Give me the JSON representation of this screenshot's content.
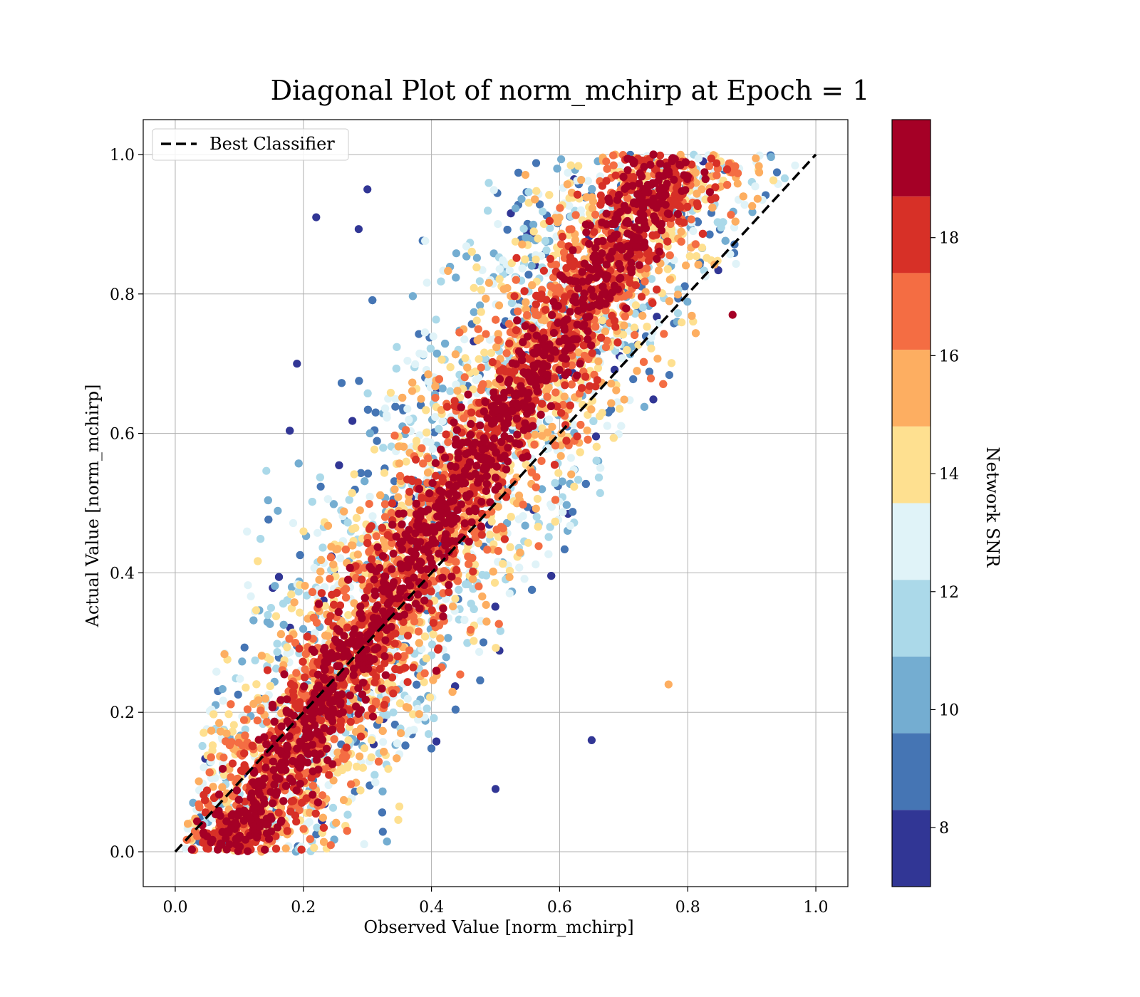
{
  "chart_data": {
    "type": "scatter",
    "title": "Diagonal Plot of norm_mchirp at Epoch = 1",
    "xlabel": "Observed Value [norm_mchirp]",
    "ylabel": "Actual Value [norm_mchirp]",
    "xlim": [
      -0.05,
      1.05
    ],
    "ylim": [
      -0.05,
      1.05
    ],
    "xticks": [
      "0.0",
      "0.2",
      "0.4",
      "0.6",
      "0.8",
      "1.0"
    ],
    "yticks": [
      "0.0",
      "0.2",
      "0.4",
      "0.6",
      "0.8",
      "1.0"
    ],
    "grid": true,
    "legend": {
      "position": "top-left",
      "entries": [
        "Best Classifier"
      ]
    },
    "reference_line": {
      "name": "Best Classifier",
      "style": "dashed",
      "color": "#000000",
      "x": [
        0,
        1
      ],
      "y": [
        0,
        1
      ]
    },
    "colorbar": {
      "label": "Network SNR",
      "range": [
        7,
        20
      ],
      "boundaries": [
        7,
        8.3,
        9.6,
        10.9,
        12.2,
        13.5,
        14.8,
        16.1,
        17.4,
        18.7,
        20
      ],
      "colors": [
        "#313695",
        "#4575b4",
        "#74add1",
        "#abd9e9",
        "#e0f3f8",
        "#fee090",
        "#fdae61",
        "#f46d43",
        "#d73027",
        "#a50026"
      ],
      "ticks": [
        "8",
        "10",
        "12",
        "14",
        "16",
        "18"
      ]
    },
    "scatter": {
      "point_count": 9000,
      "marker": "circle",
      "description_of_distribution": "dense band along the diagonal; high SNR points cluster near y=x, low SNR points scatter further away"
    },
    "sample_points": [
      {
        "x": 0.22,
        "y": 0.91,
        "snr": 7.5
      },
      {
        "x": 0.3,
        "y": 0.95,
        "snr": 7.5
      },
      {
        "x": 0.19,
        "y": 0.7,
        "snr": 7.5
      },
      {
        "x": 0.65,
        "y": 0.16,
        "snr": 7.5
      },
      {
        "x": 0.5,
        "y": 0.09,
        "snr": 7.5
      },
      {
        "x": 0.77,
        "y": 0.24,
        "snr": 15.5
      },
      {
        "x": 0.87,
        "y": 0.77,
        "snr": 19.5
      },
      {
        "x": 0.07,
        "y": 0.01,
        "snr": 19.5
      }
    ]
  }
}
